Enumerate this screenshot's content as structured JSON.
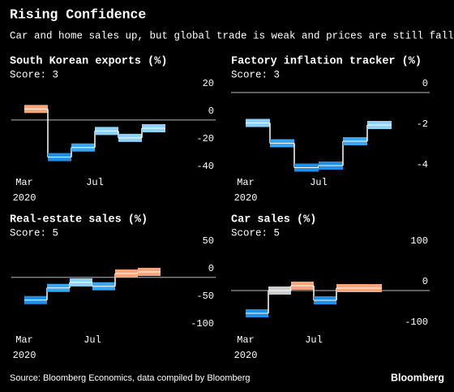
{
  "header": {
    "title": "Rising Confidence",
    "subtitle": "Car and home sales up, but global trade is weak and prices are still falling"
  },
  "footer": {
    "source": "Source: Bloomberg Economics, data compiled by Bloomberg",
    "brand": "Bloomberg"
  },
  "chart_data": [
    {
      "type": "step",
      "title": "South Korean exports (%)",
      "subtitle": "Score: 3",
      "categories": [
        "Mar",
        null,
        null,
        "Jul",
        null,
        null
      ],
      "x_year": "2020",
      "values": [
        8,
        -27,
        -20,
        -8,
        -13,
        -6
      ],
      "colors": [
        "#f6a57a",
        "#1f8fe8",
        "#3aa5f0",
        "#8fd2f7",
        "#8fd2f7",
        "#8fd2f7"
      ],
      "ylim": [
        -42,
        30
      ],
      "yticks": [
        20,
        0,
        -20,
        -40
      ],
      "zero_line": true
    },
    {
      "type": "step",
      "title": "Factory inflation tracker (%)",
      "subtitle": "Score: 3",
      "categories": [
        "Mar",
        null,
        null,
        "Jul",
        null,
        null
      ],
      "x_year": "2020",
      "values": [
        -1.5,
        -2.5,
        -3.7,
        -3.6,
        -2.4,
        -1.6
      ],
      "colors": [
        "#8fd2f7",
        "#3aa5f0",
        "#1f8fe8",
        "#1f8fe8",
        "#3aa5f0",
        "#8fd2f7"
      ],
      "ylim": [
        -4.2,
        0.68
      ],
      "yticks": [
        0,
        -2,
        -4
      ],
      "zero_line": true
    },
    {
      "type": "step",
      "title": "Real-estate sales (%)",
      "subtitle": "Score: 5",
      "categories": [
        "Mar",
        null,
        null,
        "Jul",
        null,
        null
      ],
      "x_year": "2020",
      "values": [
        -41,
        -19,
        -9,
        -16,
        7,
        10
      ],
      "colors": [
        "#1f8fe8",
        "#3aa5f0",
        "#8fd2f7",
        "#3aa5f0",
        "#f6a57a",
        "#f6a57a"
      ],
      "ylim": [
        -103,
        76
      ],
      "yticks": [
        50,
        0,
        -50,
        -100
      ],
      "zero_line": true
    },
    {
      "type": "step",
      "title": "Car sales (%)",
      "subtitle": "Score: 5",
      "categories": [
        "Mar",
        null,
        null,
        "Jul",
        null,
        null
      ],
      "x_year": "2020",
      "values": [
        -56,
        0,
        12,
        -24,
        6,
        6
      ],
      "colors": [
        "#1f8fe8",
        "#cccccc",
        "#f6a57a",
        "#1f8fe8",
        "#f6a57a",
        "#f6a57a"
      ],
      "ylim": [
        -108,
        136
      ],
      "yticks": [
        100,
        0,
        -100
      ],
      "zero_line": true
    }
  ]
}
